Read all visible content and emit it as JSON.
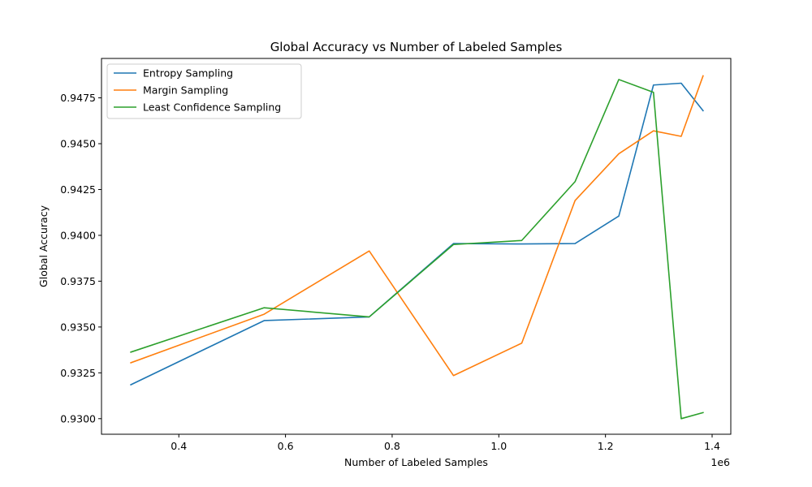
{
  "chart_data": {
    "type": "line",
    "title": "Global Accuracy vs Number of Labeled Samples",
    "xlabel": "Number of Labeled Samples",
    "ylabel": "Global Accuracy",
    "x_offset_label": "1e6",
    "x_scale": 1000000,
    "xlim": [
      0.255,
      1.435
    ],
    "ylim": [
      0.92915,
      0.94965
    ],
    "xticks": [
      0.4,
      0.6,
      0.8,
      1.0,
      1.2,
      1.4
    ],
    "xtick_labels": [
      "0.4",
      "0.6",
      "0.8",
      "1.0",
      "1.2",
      "1.4"
    ],
    "yticks": [
      0.93,
      0.9325,
      0.935,
      0.9375,
      0.94,
      0.9425,
      0.945,
      0.9475
    ],
    "ytick_labels": [
      "0.9300",
      "0.9325",
      "0.9350",
      "0.9375",
      "0.9400",
      "0.9425",
      "0.9450",
      "0.9475"
    ],
    "grid": false,
    "legend_position": "top-left",
    "series": [
      {
        "name": "Entropy Sampling",
        "color": "#1f77b4",
        "x": [
          0.31,
          0.56,
          0.757,
          0.915,
          1.043,
          1.143,
          1.225,
          1.29,
          1.342,
          1.383
        ],
        "y": [
          0.93185,
          0.93535,
          0.93555,
          0.93955,
          0.93953,
          0.93955,
          0.94105,
          0.9482,
          0.9483,
          0.9468
        ]
      },
      {
        "name": "Margin Sampling",
        "color": "#ff7f0e",
        "x": [
          0.31,
          0.56,
          0.757,
          0.915,
          1.043,
          1.143,
          1.225,
          1.29,
          1.342,
          1.383
        ],
        "y": [
          0.93305,
          0.9357,
          0.93915,
          0.93235,
          0.93412,
          0.9419,
          0.94445,
          0.9457,
          0.9454,
          0.9487
        ]
      },
      {
        "name": "Least Confidence Sampling",
        "color": "#2ca02c",
        "x": [
          0.31,
          0.56,
          0.757,
          0.915,
          1.043,
          1.143,
          1.225,
          1.29,
          1.342,
          1.383
        ],
        "y": [
          0.93363,
          0.93605,
          0.93555,
          0.9395,
          0.93972,
          0.94293,
          0.9485,
          0.9478,
          0.93,
          0.93033
        ]
      }
    ]
  }
}
